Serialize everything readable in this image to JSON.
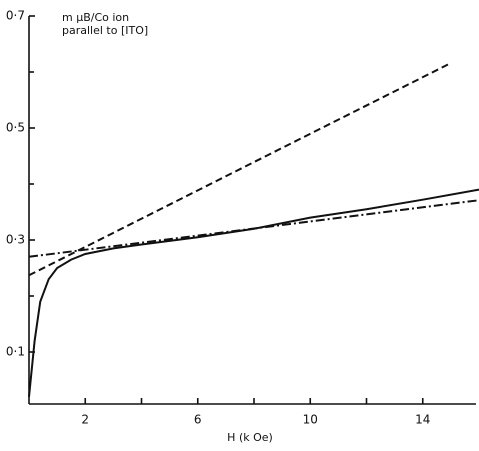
{
  "chart_data": {
    "type": "line",
    "ylabel_lines": [
      "m μB/Co ion",
      "parallel to [ITO]"
    ],
    "xlabel": "H (k Oe)",
    "xlim": [
      0,
      16
    ],
    "ylim": [
      0,
      0.7
    ],
    "xticks": [
      2,
      6,
      10,
      14
    ],
    "xminorticks": [
      4,
      8,
      12
    ],
    "yticks": [
      {
        "value": 0.1,
        "label": "0·1"
      },
      {
        "value": 0.3,
        "label": "0·3"
      },
      {
        "value": 0.5,
        "label": "0·5"
      },
      {
        "value": 0.7,
        "label": "0·7"
      }
    ],
    "yminorticks": [
      0.2,
      0.4,
      0.6
    ],
    "series": [
      {
        "style": "solid",
        "color": "#111111",
        "x": [
          0,
          0.2,
          0.4,
          0.7,
          1,
          1.5,
          2,
          3,
          4,
          6,
          8,
          10,
          12,
          14,
          16
        ],
        "values": [
          0.02,
          0.12,
          0.19,
          0.23,
          0.25,
          0.265,
          0.275,
          0.285,
          0.292,
          0.305,
          0.32,
          0.34,
          0.355,
          0.372,
          0.39
        ]
      },
      {
        "style": "dashed",
        "color": "#111111",
        "x": [
          0,
          15
        ],
        "values": [
          0.237,
          0.616
        ]
      },
      {
        "style": "dashdot",
        "color": "#111111",
        "x": [
          0,
          16
        ],
        "values": [
          0.27,
          0.371
        ]
      }
    ]
  }
}
